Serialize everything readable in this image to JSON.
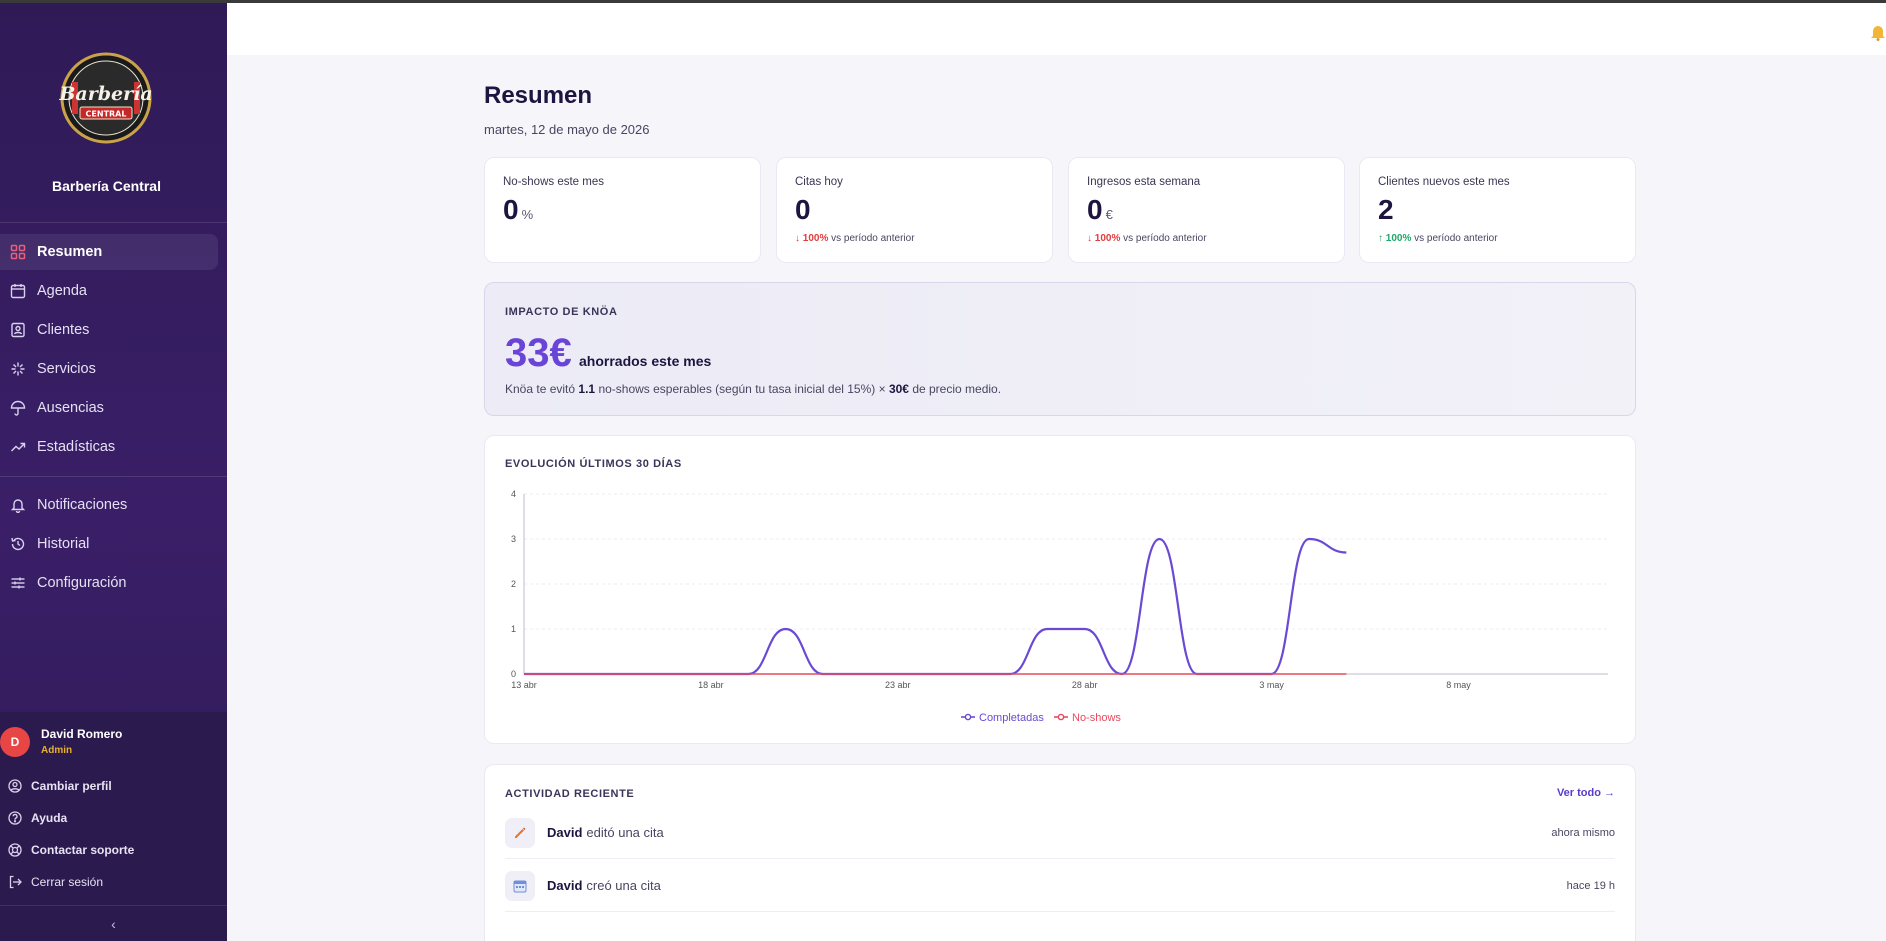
{
  "brand": {
    "name": "Barbería Central",
    "logo_text": "Barbería",
    "logo_sub": "CENTRAL"
  },
  "nav": {
    "main": [
      {
        "label": "Resumen",
        "icon": "grid-icon",
        "active": true
      },
      {
        "label": "Agenda",
        "icon": "calendar-icon"
      },
      {
        "label": "Clientes",
        "icon": "contact-card-icon"
      },
      {
        "label": "Servicios",
        "icon": "sparkle-icon"
      },
      {
        "label": "Ausencias",
        "icon": "umbrella-icon"
      },
      {
        "label": "Estadísticas",
        "icon": "trending-up-icon"
      }
    ],
    "secondary": [
      {
        "label": "Notificaciones",
        "icon": "bell-icon"
      },
      {
        "label": "Historial",
        "icon": "history-icon"
      },
      {
        "label": "Configuración",
        "icon": "sliders-icon"
      }
    ]
  },
  "user": {
    "initial": "D",
    "name": "David Romero",
    "role": "Admin"
  },
  "footer_links": [
    {
      "label": "Cambiar perfil",
      "icon": "user-circle-icon"
    },
    {
      "label": "Ayuda",
      "icon": "help-icon"
    },
    {
      "label": "Contactar soporte",
      "icon": "lifebuoy-icon"
    },
    {
      "label": "Cerrar sesión",
      "icon": "logout-icon"
    }
  ],
  "collapse_glyph": "‹",
  "page": {
    "title": "Resumen",
    "date": "martes, 12 de mayo de 2026"
  },
  "stats": [
    {
      "label": "No-shows este mes",
      "value": "0",
      "unit": "%",
      "change": "",
      "dir": "",
      "suffix": ""
    },
    {
      "label": "Citas hoy",
      "value": "0",
      "unit": "",
      "change": "↓ 100%",
      "dir": "down",
      "suffix": "vs período anterior"
    },
    {
      "label": "Ingresos esta semana",
      "value": "0",
      "unit": "€",
      "change": "↓ 100%",
      "dir": "down",
      "suffix": "vs período anterior"
    },
    {
      "label": "Clientes nuevos este mes",
      "value": "2",
      "unit": "",
      "change": "↑ 100%",
      "dir": "up",
      "suffix": "vs período anterior"
    }
  ],
  "impact": {
    "title": "IMPACTO DE KNÖA",
    "amount": "33€",
    "amount_label": "ahorrados este mes",
    "note_pre": "Knöa te evitó",
    "note_value": "1.1",
    "note_mid": "no-shows esperables (según tu tasa inicial del 15%) ×",
    "note_price": "30€",
    "note_post": "de precio medio."
  },
  "chart": {
    "title": "EVOLUCIÓN ÚLTIMOS 30 DÍAS"
  },
  "chart_data": {
    "type": "line",
    "title": "EVOLUCIÓN ÚLTIMOS 30 DÍAS",
    "x_tick_labels": [
      "13 abr",
      "18 abr",
      "23 abr",
      "28 abr",
      "3 may",
      "8 may"
    ],
    "y_ticks": [
      "0",
      "1",
      "2",
      "3",
      "4"
    ],
    "ylim": [
      0,
      4
    ],
    "x_range_days": [
      0,
      29
    ],
    "grid": "horizontal",
    "legend_placement": "bottom-center",
    "series": [
      {
        "name": "Completadas",
        "color": "#6a4ad4",
        "values": [
          0,
          0,
          0,
          0,
          0,
          0,
          0,
          1,
          0,
          0,
          0,
          0,
          0,
          0,
          1,
          1,
          0,
          3,
          0,
          0,
          0,
          3,
          2.7
        ]
      },
      {
        "name": "No-shows",
        "color": "#e84a5f",
        "values": [
          0,
          0,
          0,
          0,
          0,
          0,
          0,
          0,
          0,
          0,
          0,
          0,
          0,
          0,
          0,
          0,
          0,
          0,
          0,
          0,
          0,
          0,
          0
        ]
      }
    ]
  },
  "activity": {
    "title": "ACTIVIDAD RECIENTE",
    "view_all": "Ver todo →",
    "items": [
      {
        "user": "David",
        "action": "editó una cita",
        "time": "ahora mismo",
        "icon": "pencil-icon"
      },
      {
        "user": "David",
        "action": "creó una cita",
        "time": "hace 19 h",
        "icon": "calendar-icon"
      }
    ]
  }
}
